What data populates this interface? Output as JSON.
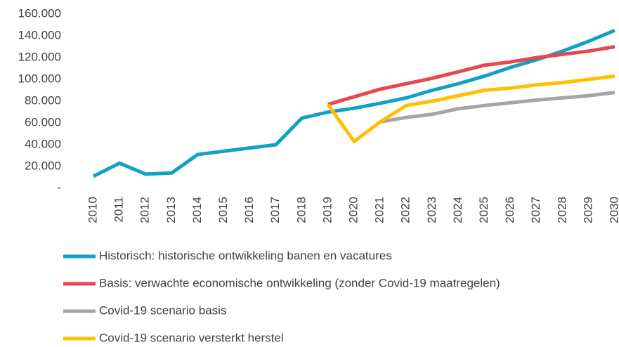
{
  "chart_data": {
    "type": "line",
    "categories": [
      "2010",
      "2011",
      "2012",
      "2013",
      "2014",
      "2015",
      "2016",
      "2017",
      "2018",
      "2019",
      "2020",
      "2021",
      "2022",
      "2023",
      "2024",
      "2025",
      "2026",
      "2027",
      "2028",
      "2029",
      "2030"
    ],
    "series": [
      {
        "name": "Historisch: historische ontwikkeling banen en vacatures",
        "color": "#10a0c9",
        "values": [
          11000,
          23000,
          13000,
          14000,
          31000,
          34000,
          37000,
          40000,
          64500,
          70000,
          73500,
          78000,
          83000,
          90000,
          96000,
          103000,
          111000,
          118000,
          126000,
          135000,
          145000
        ]
      },
      {
        "name": "Basis: verwachte economische ontwikkeling (zonder Covid-19 maatregelen)",
        "color": "#e8474f",
        "values": [
          null,
          null,
          null,
          null,
          null,
          null,
          null,
          null,
          null,
          77000,
          84000,
          91000,
          96000,
          101000,
          107000,
          113000,
          116000,
          120000,
          123000,
          126000,
          130000
        ]
      },
      {
        "name": "Covid-19 scenario basis",
        "color": "#a5a5a5",
        "values": [
          null,
          null,
          null,
          null,
          null,
          null,
          null,
          null,
          null,
          null,
          null,
          61000,
          65000,
          68000,
          73000,
          76000,
          78500,
          81000,
          83000,
          85000,
          88000
        ]
      },
      {
        "name": "Covid-19 scenario versterkt herstel",
        "color": "#ffc000",
        "values": [
          null,
          null,
          null,
          null,
          null,
          null,
          null,
          null,
          null,
          77000,
          43000,
          61000,
          76000,
          80000,
          85000,
          90000,
          92000,
          95000,
          97000,
          100000,
          103000
        ]
      }
    ],
    "ylim": [
      0,
      160000
    ],
    "yticks": [
      {
        "value": 0,
        "label": "-"
      },
      {
        "value": 20000,
        "label": "20.000"
      },
      {
        "value": 40000,
        "label": "40.000"
      },
      {
        "value": 60000,
        "label": "60.000"
      },
      {
        "value": 80000,
        "label": "80.000"
      },
      {
        "value": 100000,
        "label": "100.000"
      },
      {
        "value": 120000,
        "label": "120.000"
      },
      {
        "value": 140000,
        "label": "140.000"
      },
      {
        "value": 160000,
        "label": "160.000"
      }
    ],
    "grid": false,
    "legend": "bottom"
  }
}
